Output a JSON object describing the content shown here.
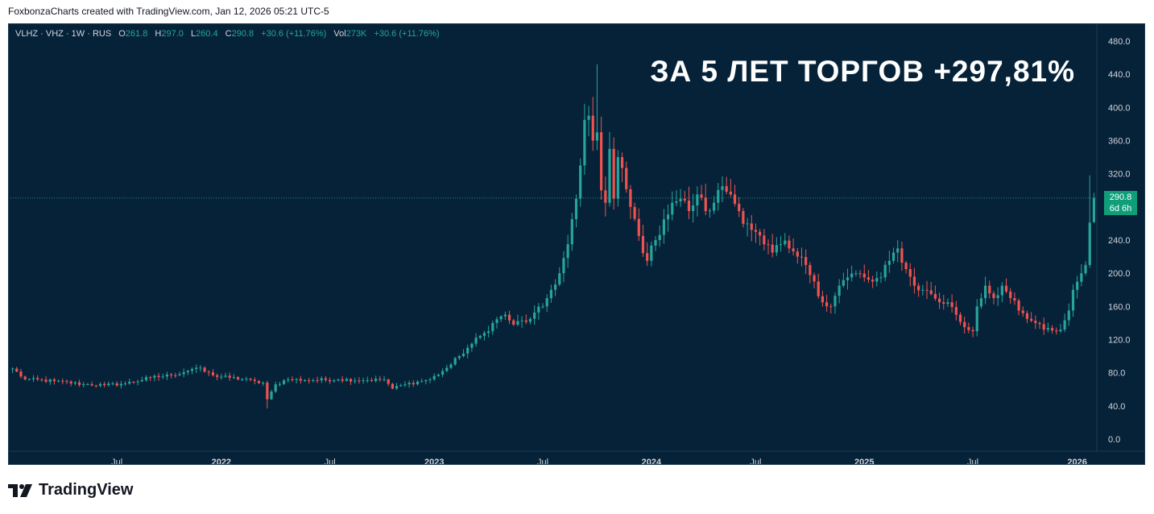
{
  "caption": "FoxbonzaCharts created with TradingView.com, Jan 12, 2026 05:21 UTC-5",
  "legend": {
    "symbol": "VLHZ · VHZ · 1W · RUS",
    "o_label": "O",
    "o": "261.8",
    "h_label": "H",
    "h": "297.0",
    "l_label": "L",
    "l": "260.4",
    "c_label": "C",
    "c": "290.8",
    "change": "+30.6 (+11.76%)",
    "vol_label": "Vol",
    "vol": "273K",
    "vol_change": "+30.6 (+11.76%)"
  },
  "headline": "ЗА 5 ЛЕТ ТОРГОВ +297,81%",
  "price_tag": {
    "price": "290.8",
    "countdown": "6d 6h"
  },
  "brand": "TradingView",
  "colors": {
    "background": "#062238",
    "up": "#26a69a",
    "down": "#ef5350",
    "axis_text": "#d1d4dc",
    "current_price": "#0f9e79"
  },
  "chart_data": {
    "type": "candlestick",
    "timeframe": "1W",
    "ylim": [
      0,
      480
    ],
    "y_ticks": [
      "480.0",
      "440.0",
      "400.0",
      "360.0",
      "320.0",
      "280.0",
      "240.0",
      "200.0",
      "160.0",
      "120.0",
      "80.0",
      "40.0",
      "0.0"
    ],
    "y_tick_values": [
      480,
      440,
      400,
      360,
      320,
      280,
      240,
      200,
      160,
      120,
      80,
      40,
      0
    ],
    "x_tick_labels": [
      "Jul",
      "2022",
      "Jul",
      "2023",
      "Jul",
      "2024",
      "Jul",
      "2025",
      "Jul",
      "2026"
    ],
    "x_tick_bold": [
      false,
      true,
      false,
      true,
      false,
      true,
      false,
      true,
      false,
      true
    ],
    "x_tick_index": [
      25,
      50,
      76,
      101,
      127,
      153,
      178,
      204,
      230,
      255
    ],
    "current_price": 290.8,
    "anchors": [
      [
        0,
        85
      ],
      [
        3,
        72
      ],
      [
        10,
        70
      ],
      [
        17,
        66
      ],
      [
        22,
        65
      ],
      [
        27,
        67
      ],
      [
        33,
        74
      ],
      [
        38,
        77
      ],
      [
        44,
        86
      ],
      [
        48,
        77
      ],
      [
        52,
        74
      ],
      [
        58,
        70
      ],
      [
        60,
        68
      ],
      [
        61,
        48
      ],
      [
        63,
        66
      ],
      [
        66,
        72
      ],
      [
        72,
        71
      ],
      [
        78,
        72
      ],
      [
        85,
        71
      ],
      [
        89,
        72
      ],
      [
        91,
        61
      ],
      [
        94,
        66
      ],
      [
        100,
        72
      ],
      [
        103,
        82
      ],
      [
        105,
        90
      ],
      [
        107,
        100
      ],
      [
        110,
        115
      ],
      [
        113,
        128
      ],
      [
        115,
        140
      ],
      [
        118,
        150
      ],
      [
        120,
        138
      ],
      [
        124,
        145
      ],
      [
        127,
        160
      ],
      [
        129,
        180
      ],
      [
        131,
        200
      ],
      [
        133,
        235
      ],
      [
        135,
        290
      ],
      [
        136,
        330
      ],
      [
        137,
        385
      ],
      [
        138,
        390
      ],
      [
        139,
        360
      ],
      [
        140,
        370
      ],
      [
        141,
        300
      ],
      [
        142,
        285
      ],
      [
        143,
        350
      ],
      [
        144,
        290
      ],
      [
        145,
        340
      ],
      [
        148,
        280
      ],
      [
        150,
        245
      ],
      [
        152,
        215
      ],
      [
        154,
        240
      ],
      [
        156,
        265
      ],
      [
        158,
        285
      ],
      [
        160,
        290
      ],
      [
        162,
        275
      ],
      [
        164,
        295
      ],
      [
        166,
        275
      ],
      [
        168,
        285
      ],
      [
        170,
        305
      ],
      [
        172,
        295
      ],
      [
        174,
        275
      ],
      [
        176,
        260
      ],
      [
        178,
        250
      ],
      [
        180,
        235
      ],
      [
        182,
        225
      ],
      [
        184,
        235
      ],
      [
        186,
        230
      ],
      [
        188,
        220
      ],
      [
        190,
        210
      ],
      [
        192,
        190
      ],
      [
        194,
        165
      ],
      [
        196,
        160
      ],
      [
        198,
        185
      ],
      [
        200,
        195
      ],
      [
        202,
        200
      ],
      [
        204,
        195
      ],
      [
        206,
        190
      ],
      [
        208,
        195
      ],
      [
        210,
        215
      ],
      [
        212,
        230
      ],
      [
        214,
        205
      ],
      [
        216,
        185
      ],
      [
        218,
        180
      ],
      [
        220,
        175
      ],
      [
        222,
        165
      ],
      [
        224,
        165
      ],
      [
        226,
        150
      ],
      [
        228,
        135
      ],
      [
        230,
        130
      ],
      [
        231,
        160
      ],
      [
        233,
        185
      ],
      [
        235,
        170
      ],
      [
        237,
        185
      ],
      [
        239,
        170
      ],
      [
        241,
        155
      ],
      [
        243,
        145
      ],
      [
        245,
        140
      ],
      [
        247,
        132
      ],
      [
        249,
        131
      ],
      [
        251,
        132
      ],
      [
        253,
        155
      ],
      [
        254,
        180
      ],
      [
        256,
        200
      ],
      [
        257,
        210
      ],
      [
        258,
        261
      ],
      [
        259,
        291
      ]
    ],
    "candle_count": 260
  }
}
